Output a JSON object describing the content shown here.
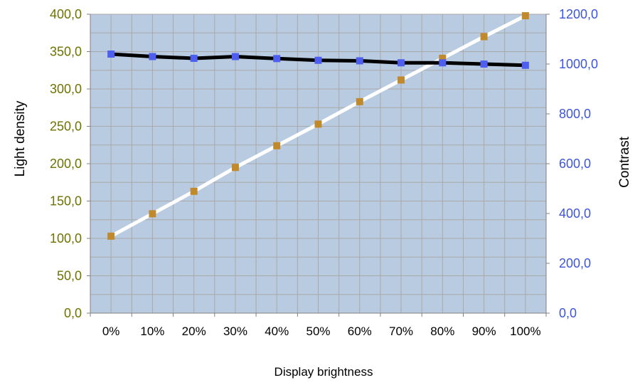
{
  "chart_data": {
    "type": "line",
    "xlabel": "Display brightness",
    "ylabel_left": "Light density",
    "ylabel_right": "Contrast",
    "categories": [
      "0%",
      "10%",
      "20%",
      "30%",
      "40%",
      "50%",
      "60%",
      "70%",
      "80%",
      "90%",
      "100%"
    ],
    "y_left": {
      "range": [
        0,
        400
      ],
      "ticks": [
        "0,0",
        "50,0",
        "100,0",
        "150,0",
        "200,0",
        "250,0",
        "300,0",
        "350,0",
        "400,0"
      ],
      "tick_values": [
        0,
        50,
        100,
        150,
        200,
        250,
        300,
        350,
        400
      ]
    },
    "y_right": {
      "range": [
        0,
        1200
      ],
      "ticks": [
        "0,0",
        "200,0",
        "400,0",
        "600,0",
        "800,0",
        "1000,0",
        "1200,0"
      ],
      "tick_values": [
        0,
        200,
        400,
        600,
        800,
        1000,
        1200
      ]
    },
    "series": [
      {
        "axis": "left",
        "values": [
          103,
          133,
          163,
          195,
          224,
          253,
          283,
          312,
          341,
          370,
          398
        ],
        "line_color": "#ffffff",
        "marker_color": "#c08a2c"
      },
      {
        "axis": "right",
        "values": [
          1040,
          1030,
          1023,
          1030,
          1022,
          1015,
          1013,
          1005,
          1005,
          1000,
          995
        ],
        "line_color": "#000000",
        "marker_color": "#4e5ff0"
      }
    ],
    "grid": true,
    "colors": {
      "plot_background": "#b9cbe0",
      "grid": "#a9a9a9",
      "left_axis_text": "#6f7200",
      "right_axis_text": "#3d55d9"
    }
  }
}
